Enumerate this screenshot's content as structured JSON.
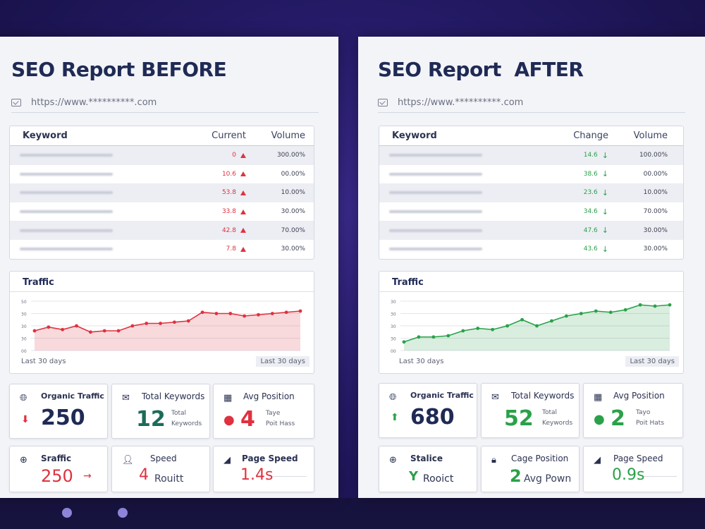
{
  "before": {
    "title": "SEO Report BEFORE",
    "url": "https://www.**********.com",
    "table": {
      "headers": [
        "Keyword",
        "Current",
        "Volume"
      ],
      "rows": [
        {
          "current": "0",
          "volume": "300.00%"
        },
        {
          "current": "10.6",
          "volume": "00.00%"
        },
        {
          "current": "53.8",
          "volume": "10.00%"
        },
        {
          "current": "33.8",
          "volume": "30.00%"
        },
        {
          "current": "42.8",
          "volume": "70.00%"
        },
        {
          "current": "7.8",
          "volume": "30.00%"
        }
      ]
    },
    "traffic": {
      "title": "Traffic",
      "y_ticks": [
        "50",
        "30",
        "30",
        "30",
        "00"
      ],
      "label_left": "Last 30 days",
      "label_right": "Last 30 days",
      "values": [
        16,
        19,
        17,
        20,
        15,
        16,
        16,
        20,
        22,
        22,
        23,
        24,
        31,
        30,
        30,
        28,
        29,
        30,
        31,
        32
      ],
      "color": "#e0313f"
    },
    "cards": {
      "organic": {
        "label": "Organic Traffic",
        "value": "250"
      },
      "keywords": {
        "label": "Total Keywords",
        "value": "12",
        "sub1": "Total",
        "sub2": "Keywords"
      },
      "position": {
        "label": "Avg Position",
        "value": "4",
        "sub1": "Taye",
        "sub2": "Poit Hass"
      },
      "traffic2": {
        "label": "Sraffic",
        "value": "250",
        "arrow": "→"
      },
      "speed": {
        "label": "Speed",
        "value": "4",
        "unit": "Rouitt"
      },
      "page_speed": {
        "label": "Page Speed",
        "value": "1.4s"
      }
    }
  },
  "after": {
    "title": "SEO Report  AFTER",
    "url": "https://www.**********.com",
    "table": {
      "headers": [
        "Keyword",
        "Change",
        "Volume"
      ],
      "rows": [
        {
          "change": "14.6",
          "volume": "100.00%"
        },
        {
          "change": "38.6",
          "volume": "00.00%"
        },
        {
          "change": "23.6",
          "volume": "10.00%"
        },
        {
          "change": "34.6",
          "volume": "70.00%"
        },
        {
          "change": "47.6",
          "volume": "30.00%"
        },
        {
          "change": "43.6",
          "volume": "30.00%"
        }
      ]
    },
    "traffic": {
      "title": "Traffic",
      "y_ticks": [
        "30",
        "30",
        "30",
        "30",
        "00"
      ],
      "label_left": "Last 30 days",
      "label_right": "Last 30 days",
      "values": [
        7,
        11,
        11,
        12,
        16,
        18,
        17,
        20,
        25,
        20,
        24,
        28,
        30,
        32,
        31,
        33,
        37,
        36,
        37
      ],
      "color": "#2aa149"
    },
    "cards": {
      "organic": {
        "label": "Organic Traffic",
        "value": "680"
      },
      "keywords": {
        "label": "Total Keywords",
        "value": "52",
        "sub1": "Total",
        "sub2": "Keywords"
      },
      "position": {
        "label": "Avg Position",
        "value": "2",
        "sub1": "Tayo",
        "sub2": "Poit Hats"
      },
      "traffic2": {
        "label": "Stalice",
        "value": "Y",
        "unit": "Rooict"
      },
      "speed": {
        "label": "Cage Position",
        "value": "2",
        "unit": "Avg Pown"
      },
      "page_speed": {
        "label": "Page Speed",
        "value": "0.9s"
      }
    }
  }
}
